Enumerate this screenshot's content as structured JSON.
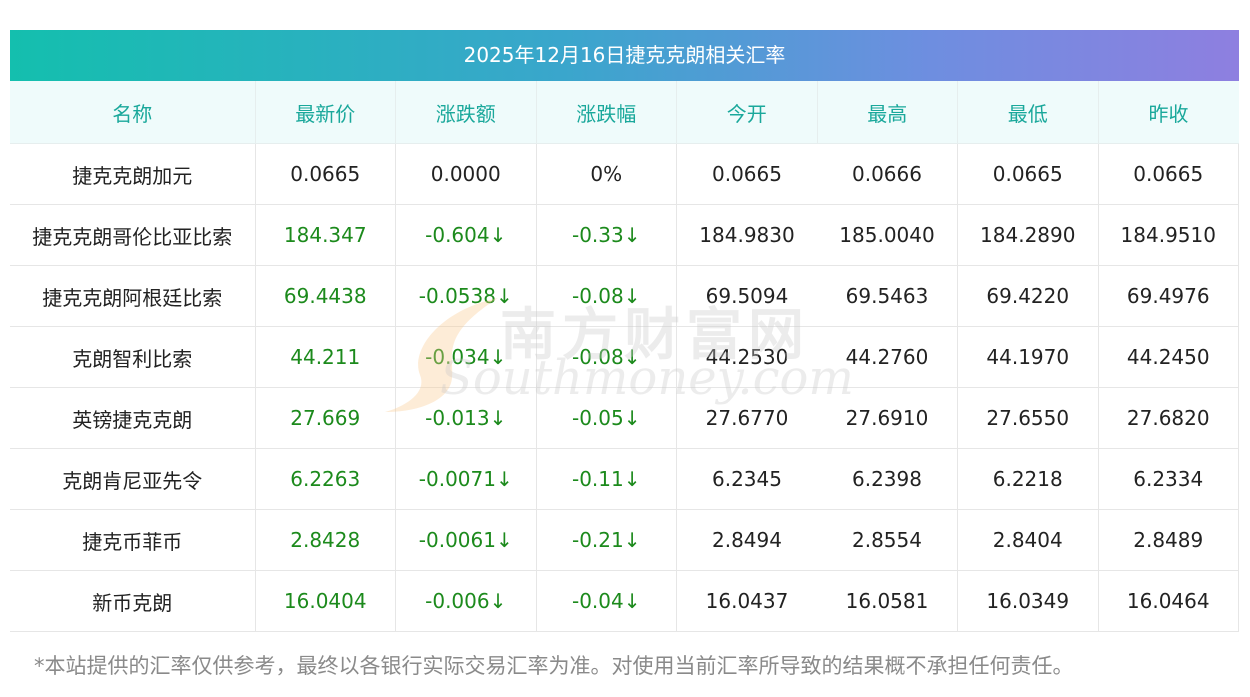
{
  "title": "2025年12月16日捷克克朗相关汇率",
  "headers": [
    "名称",
    "最新价",
    "涨跌额",
    "涨跌幅",
    "今开",
    "最高",
    "最低",
    "昨收"
  ],
  "rows": [
    {
      "name": "捷克克朗加元",
      "last": "0.0665",
      "chg": "0.0000",
      "chgp": "0%",
      "open": "0.0665",
      "high": "0.0666",
      "low": "0.0665",
      "close": "0.0665",
      "down": false
    },
    {
      "name": "捷克克朗哥伦比亚比索",
      "last": "184.347",
      "chg": "-0.604↓",
      "chgp": "-0.33↓",
      "open": "184.9830",
      "high": "185.0040",
      "low": "184.2890",
      "close": "184.9510",
      "down": true
    },
    {
      "name": "捷克克朗阿根廷比索",
      "last": "69.4438",
      "chg": "-0.0538↓",
      "chgp": "-0.08↓",
      "open": "69.5094",
      "high": "69.5463",
      "low": "69.4220",
      "close": "69.4976",
      "down": true
    },
    {
      "name": "克朗智利比索",
      "last": "44.211",
      "chg": "-0.034↓",
      "chgp": "-0.08↓",
      "open": "44.2530",
      "high": "44.2760",
      "low": "44.1970",
      "close": "44.2450",
      "down": true
    },
    {
      "name": "英镑捷克克朗",
      "last": "27.669",
      "chg": "-0.013↓",
      "chgp": "-0.05↓",
      "open": "27.6770",
      "high": "27.6910",
      "low": "27.6550",
      "close": "27.6820",
      "down": true
    },
    {
      "name": "克朗肯尼亚先令",
      "last": "6.2263",
      "chg": "-0.0071↓",
      "chgp": "-0.11↓",
      "open": "6.2345",
      "high": "6.2398",
      "low": "6.2218",
      "close": "6.2334",
      "down": true
    },
    {
      "name": "捷克币菲币",
      "last": "2.8428",
      "chg": "-0.0061↓",
      "chgp": "-0.21↓",
      "open": "2.8494",
      "high": "2.8554",
      "low": "2.8404",
      "close": "2.8489",
      "down": true
    },
    {
      "name": "新币克朗",
      "last": "16.0404",
      "chg": "-0.006↓",
      "chgp": "-0.04↓",
      "open": "16.0437",
      "high": "16.0581",
      "low": "16.0349",
      "close": "16.0464",
      "down": true
    }
  ],
  "watermark": {
    "cn": "南方财富网",
    "en": "Southmoney.com"
  },
  "footer": "*本站提供的汇率仅供参考，最终以各银行实际交易汇率为准。对使用当前汇率所导致的结果概不承担任何责任。"
}
